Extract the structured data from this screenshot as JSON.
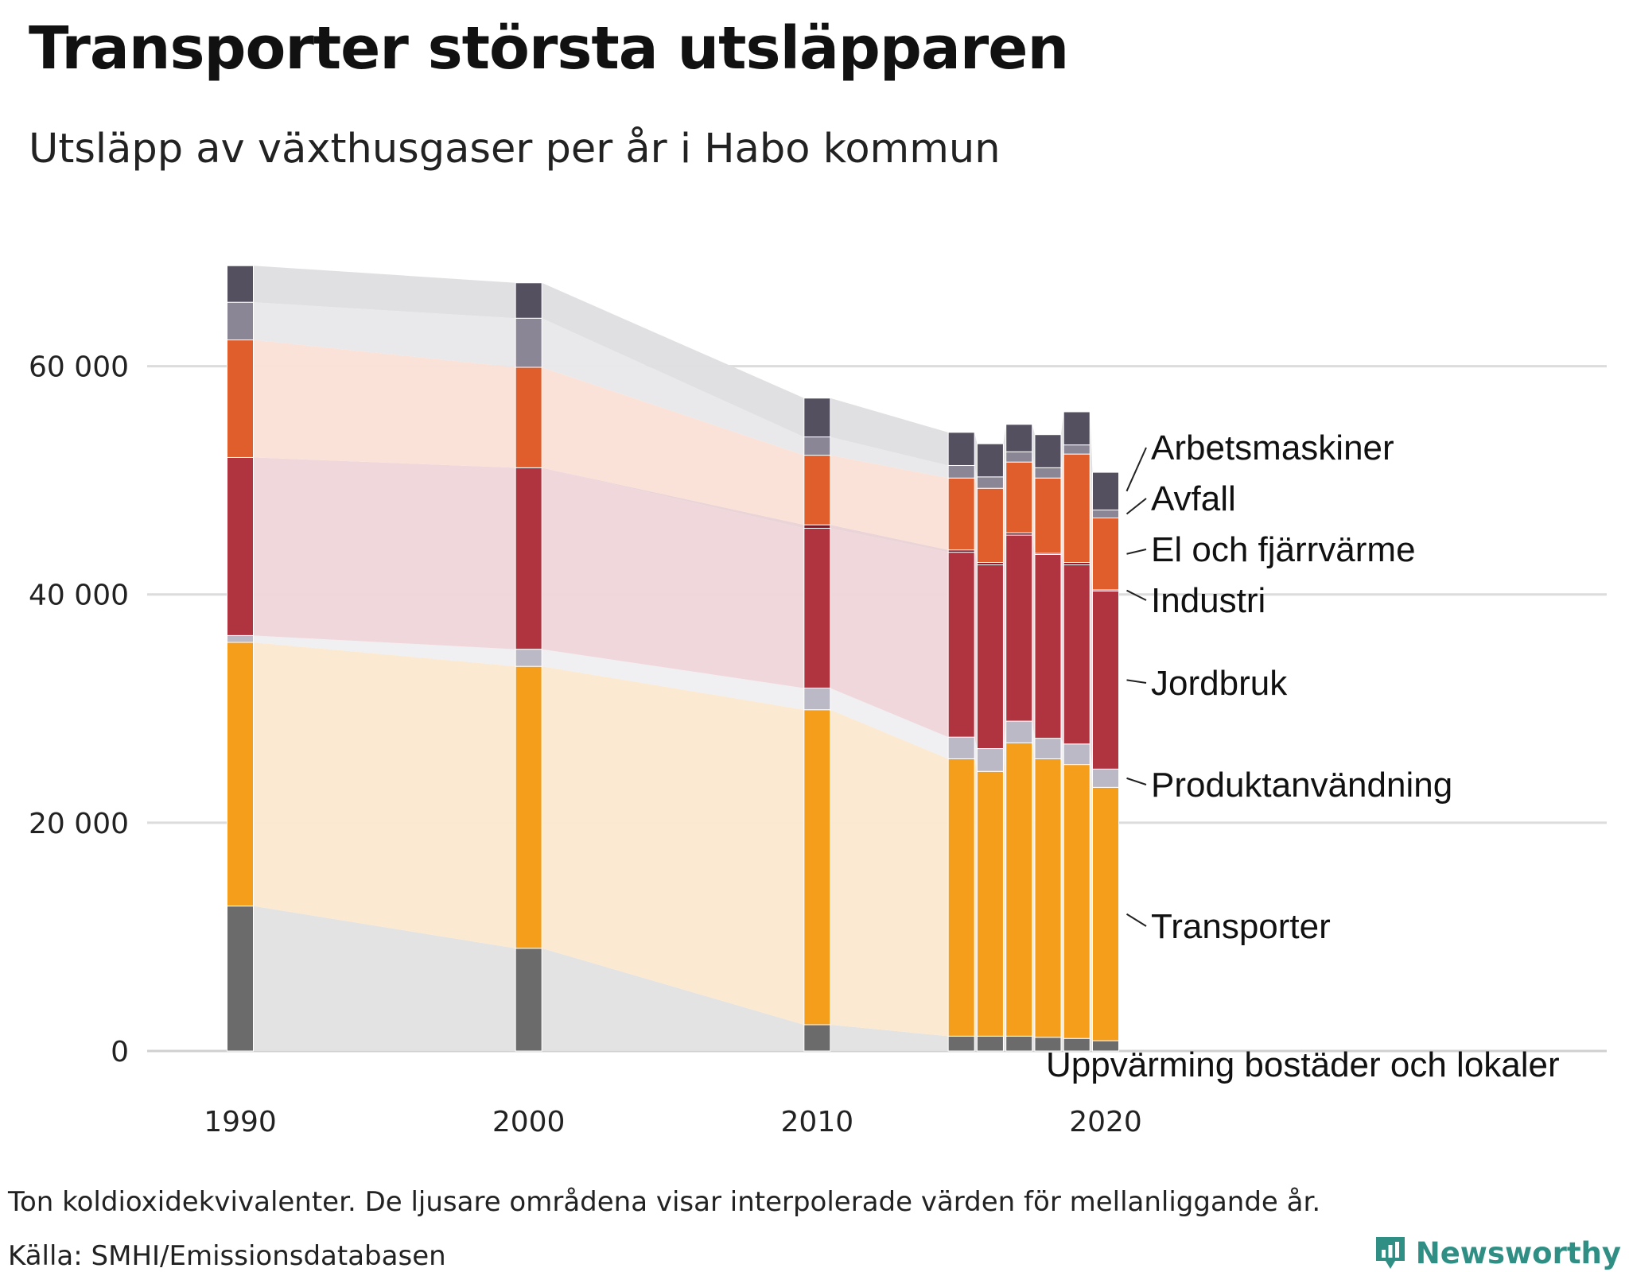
{
  "title": "Transporter största utsläpparen",
  "subtitle": "Utsläpp av växthusgaser per år i Habo kommun",
  "note": "Ton koldioxidekvivalenter. De ljusare områdena visar interpolerade värden för mellanliggande år.",
  "source": "Källa: SMHI/Emissionsdatabasen",
  "brand": {
    "name": "Newsworthy",
    "icon": "newsworthy-logo-icon",
    "color": "#2f8f84"
  },
  "chart_data": {
    "type": "bar",
    "stacked": true,
    "interpolated_bands": true,
    "title": "Transporter största utsläpparen",
    "ylim": [
      0,
      70000
    ],
    "yticks": [
      0,
      20000,
      40000,
      60000
    ],
    "ytick_labels": [
      "0",
      "20 000",
      "40 000",
      "60 000"
    ],
    "xticks": [
      1990,
      2000,
      2010,
      2020
    ],
    "xtick_labels": [
      "1990",
      "2000",
      "2010",
      "2020"
    ],
    "grid": true,
    "legend_placement": "right-direct-labels",
    "x": [
      1990,
      2000,
      2010,
      2015,
      2016,
      2017,
      2018,
      2019,
      2020
    ],
    "series": [
      {
        "name": "Uppvärming bostäder och lokaler",
        "color": "#6b6b6b",
        "band_color": "#e2e2e3",
        "values": [
          12700,
          9000,
          2300,
          1300,
          1300,
          1300,
          1200,
          1100,
          900
        ]
      },
      {
        "name": "Transporter",
        "color": "#f59e1c",
        "band_color": "#fbe9cf",
        "values": [
          23100,
          24700,
          27600,
          24300,
          23200,
          25700,
          24400,
          24000,
          22200
        ]
      },
      {
        "name": "Produktanvändning",
        "color": "#bbb9c6",
        "band_color": "#efeef1",
        "values": [
          600,
          1500,
          1900,
          1900,
          2000,
          1900,
          1800,
          1800,
          1600
        ]
      },
      {
        "name": "Jordbruk",
        "color": "#b03340",
        "band_color": "#eed5d9",
        "values": [
          15600,
          15900,
          14000,
          16200,
          16100,
          16300,
          16100,
          15700,
          15600
        ]
      },
      {
        "name": "Industri",
        "color": "#8a1022",
        "band_color": "#e9d2d6",
        "values": [
          0,
          0,
          300,
          200,
          200,
          200,
          100,
          200,
          100
        ]
      },
      {
        "name": "El och fjärrvärme",
        "color": "#e05d2c",
        "band_color": "#fbe0d6",
        "values": [
          10300,
          8800,
          6100,
          6300,
          6500,
          6200,
          6600,
          9500,
          6300
        ]
      },
      {
        "name": "Avfall",
        "color": "#8a8696",
        "band_color": "#e8e8ea",
        "values": [
          3300,
          4300,
          1600,
          1100,
          1000,
          900,
          900,
          800,
          700
        ]
      },
      {
        "name": "Arbetsmaskiner",
        "color": "#555060",
        "band_color": "#dedee0",
        "values": [
          3200,
          3100,
          3400,
          2900,
          2900,
          2400,
          2900,
          2900,
          3300
        ]
      }
    ]
  }
}
